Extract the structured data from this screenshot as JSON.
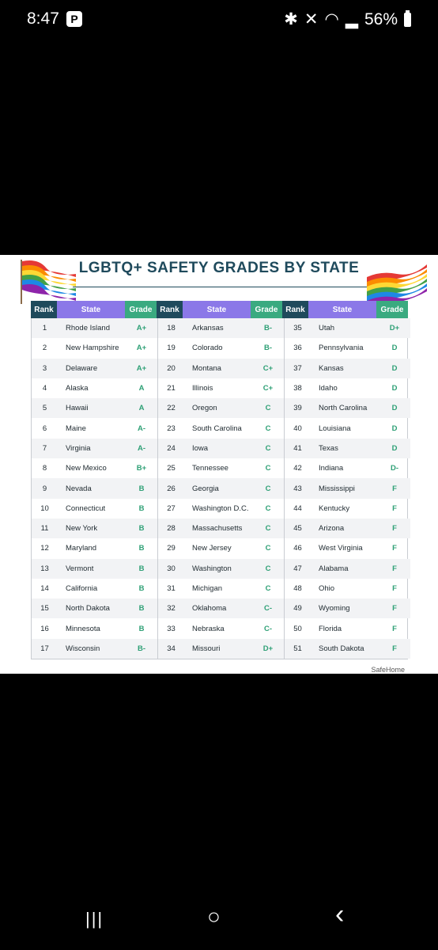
{
  "status_bar": {
    "time": "8:47",
    "notif_glyph": "P",
    "battery": "56%",
    "icons": [
      "bluetooth-icon",
      "mute-icon",
      "wifi-icon",
      "signal-icon",
      "battery-icon"
    ]
  },
  "chart": {
    "title": "LGBTQ+ SAFETY GRADES BY STATE",
    "headers": {
      "rank": "Rank",
      "state": "State",
      "grade": "Grade"
    },
    "footer": "SafeHome"
  },
  "chart_data": {
    "type": "table",
    "title": "LGBTQ+ SAFETY GRADES BY STATE",
    "columns": [
      "Rank",
      "State",
      "Grade"
    ],
    "rows": [
      [
        "1",
        "Rhode Island",
        "A+"
      ],
      [
        "2",
        "New Hampshire",
        "A+"
      ],
      [
        "3",
        "Delaware",
        "A+"
      ],
      [
        "4",
        "Alaska",
        "A"
      ],
      [
        "5",
        "Hawaii",
        "A"
      ],
      [
        "6",
        "Maine",
        "A-"
      ],
      [
        "7",
        "Virginia",
        "A-"
      ],
      [
        "8",
        "New Mexico",
        "B+"
      ],
      [
        "9",
        "Nevada",
        "B"
      ],
      [
        "10",
        "Connecticut",
        "B"
      ],
      [
        "11",
        "New York",
        "B"
      ],
      [
        "12",
        "Maryland",
        "B"
      ],
      [
        "13",
        "Vermont",
        "B"
      ],
      [
        "14",
        "California",
        "B"
      ],
      [
        "15",
        "North Dakota",
        "B"
      ],
      [
        "16",
        "Minnesota",
        "B"
      ],
      [
        "17",
        "Wisconsin",
        "B-"
      ],
      [
        "18",
        "Arkansas",
        "B-"
      ],
      [
        "19",
        "Colorado",
        "B-"
      ],
      [
        "20",
        "Montana",
        "C+"
      ],
      [
        "21",
        "Illinois",
        "C+"
      ],
      [
        "22",
        "Oregon",
        "C"
      ],
      [
        "23",
        "South Carolina",
        "C"
      ],
      [
        "24",
        "Iowa",
        "C"
      ],
      [
        "25",
        "Tennessee",
        "C"
      ],
      [
        "26",
        "Georgia",
        "C"
      ],
      [
        "27",
        "Washington D.C.",
        "C"
      ],
      [
        "28",
        "Massachusetts",
        "C"
      ],
      [
        "29",
        "New Jersey",
        "C"
      ],
      [
        "30",
        "Washington",
        "C"
      ],
      [
        "31",
        "Michigan",
        "C"
      ],
      [
        "32",
        "Oklahoma",
        "C-"
      ],
      [
        "33",
        "Nebraska",
        "C-"
      ],
      [
        "34",
        "Missouri",
        "D+"
      ],
      [
        "35",
        "Utah",
        "D+"
      ],
      [
        "36",
        "Pennsylvania",
        "D"
      ],
      [
        "37",
        "Kansas",
        "D"
      ],
      [
        "38",
        "Idaho",
        "D"
      ],
      [
        "39",
        "North Carolina",
        "D"
      ],
      [
        "40",
        "Louisiana",
        "D"
      ],
      [
        "41",
        "Texas",
        "D"
      ],
      [
        "42",
        "Indiana",
        "D-"
      ],
      [
        "43",
        "Mississippi",
        "F"
      ],
      [
        "44",
        "Kentucky",
        "F"
      ],
      [
        "45",
        "Arizona",
        "F"
      ],
      [
        "46",
        "West Virginia",
        "F"
      ],
      [
        "47",
        "Alabama",
        "F"
      ],
      [
        "48",
        "Ohio",
        "F"
      ],
      [
        "49",
        "Wyoming",
        "F"
      ],
      [
        "50",
        "Florida",
        "F"
      ],
      [
        "51",
        "South Dakota",
        "F"
      ]
    ]
  },
  "colors": {
    "rank_header": "#1f4a5c",
    "state_header": "#8b78e8",
    "grade_header": "#3aaa80",
    "grade_text": "#2fa076",
    "title": "#1f4a5c"
  },
  "nav": {
    "recents": "|||",
    "home": "○",
    "back": "‹"
  }
}
